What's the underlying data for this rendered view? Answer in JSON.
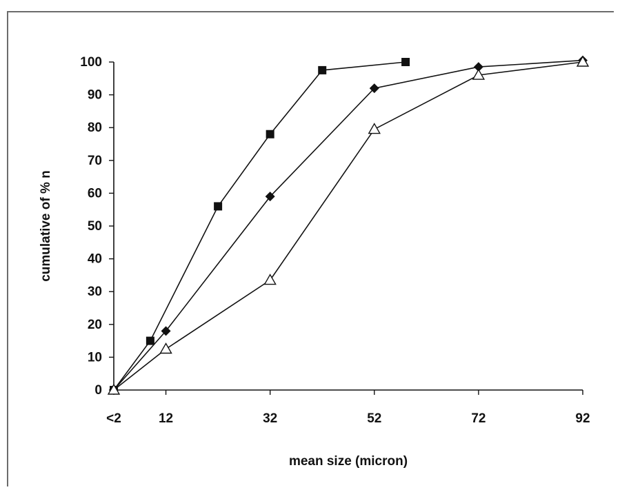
{
  "chart_data": {
    "type": "line",
    "title": "",
    "xlabel": "mean size (micron)",
    "ylabel": "cumulative of % n",
    "x_tick_labels": [
      "<2",
      "12",
      "32",
      "52",
      "72",
      "92"
    ],
    "y_ticks": [
      0,
      10,
      20,
      30,
      40,
      50,
      60,
      70,
      80,
      90,
      100
    ],
    "ylim": [
      0,
      100
    ],
    "grid": false,
    "legend": "none",
    "series": [
      {
        "marker": "square",
        "color": "#111111",
        "points": [
          {
            "x": 2,
            "y": 0
          },
          {
            "x": 9,
            "y": 15
          },
          {
            "x": 22,
            "y": 56
          },
          {
            "x": 32,
            "y": 78
          },
          {
            "x": 42,
            "y": 97.5
          },
          {
            "x": 58,
            "y": 100
          }
        ]
      },
      {
        "marker": "diamond",
        "color": "#111111",
        "points": [
          {
            "x": 2,
            "y": 0
          },
          {
            "x": 12,
            "y": 18
          },
          {
            "x": 32,
            "y": 59
          },
          {
            "x": 52,
            "y": 92
          },
          {
            "x": 72,
            "y": 98.5
          },
          {
            "x": 92,
            "y": 100.5
          }
        ]
      },
      {
        "marker": "triangle",
        "color": "#111111",
        "points": [
          {
            "x": 2,
            "y": 0
          },
          {
            "x": 12,
            "y": 12.5
          },
          {
            "x": 32,
            "y": 33.5
          },
          {
            "x": 52,
            "y": 79.5
          },
          {
            "x": 72,
            "y": 96
          },
          {
            "x": 92,
            "y": 100
          }
        ]
      }
    ]
  }
}
